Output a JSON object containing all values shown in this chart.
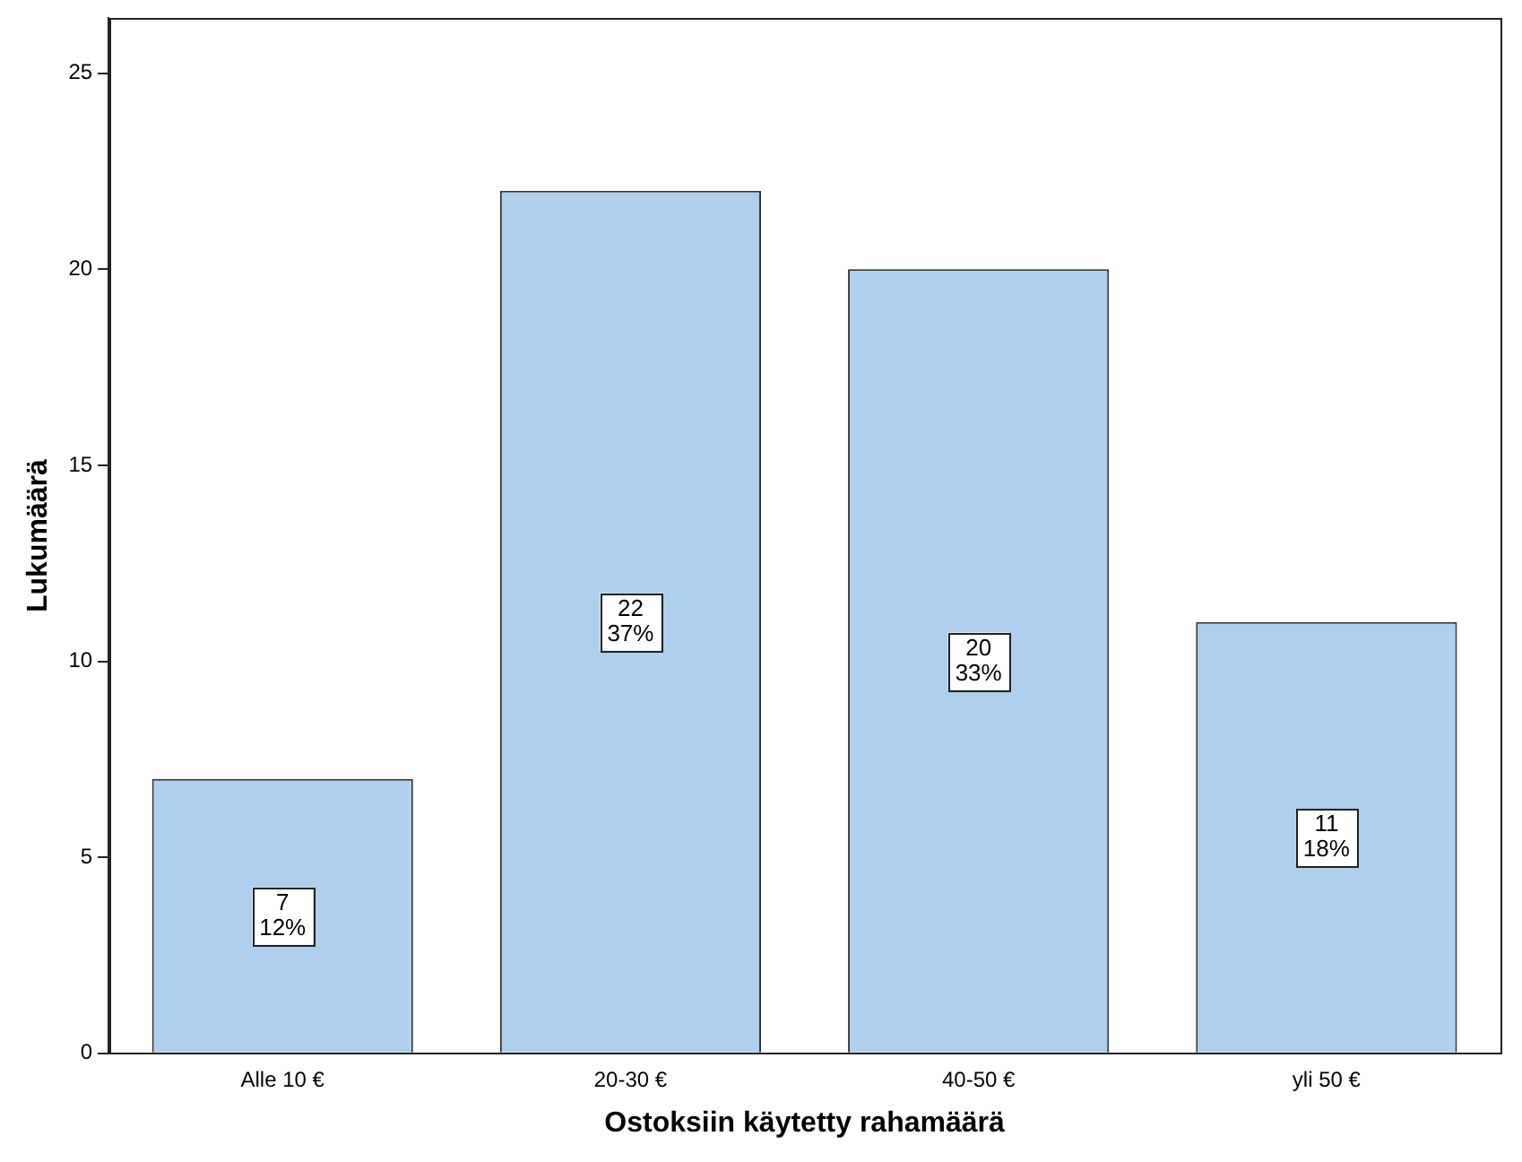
{
  "chart_data": {
    "type": "bar",
    "xlabel": "Ostoksiin käytetty rahamäärä",
    "ylabel": "Lukumäärä",
    "categories": [
      "Alle 10 €",
      "20-30 €",
      "40-50 €",
      "yli 50 €"
    ],
    "values": [
      7,
      22,
      20,
      11
    ],
    "color": "#aed0ee",
    "value_labels": [
      "7\n12%",
      "22\n37%",
      "20\n33%",
      "11\n18%"
    ],
    "ylim": [
      0,
      26.4
    ],
    "yticks": [
      0,
      5,
      10,
      15,
      20,
      25
    ],
    "grid": false,
    "legend": false
  }
}
